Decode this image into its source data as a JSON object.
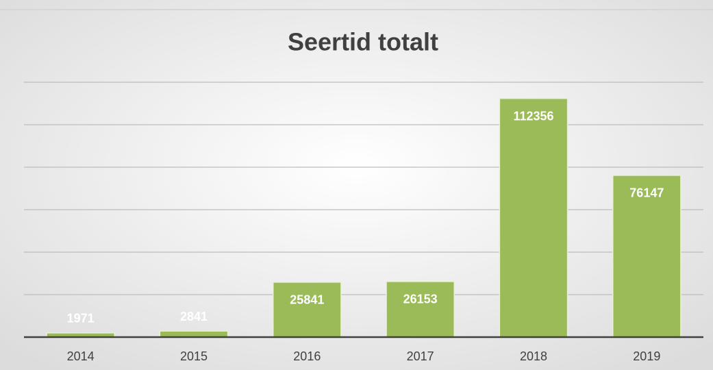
{
  "chart_data": {
    "type": "bar",
    "title": "Seertid totalt",
    "categories": [
      "2014",
      "2015",
      "2016",
      "2017",
      "2018",
      "2019"
    ],
    "values": [
      1971,
      2841,
      25841,
      26153,
      112356,
      76147
    ],
    "color": "#9bbb59",
    "ylim": [
      0,
      120000
    ],
    "yticks": [
      0,
      20000,
      40000,
      60000,
      80000,
      100000,
      120000
    ],
    "grid": true
  }
}
